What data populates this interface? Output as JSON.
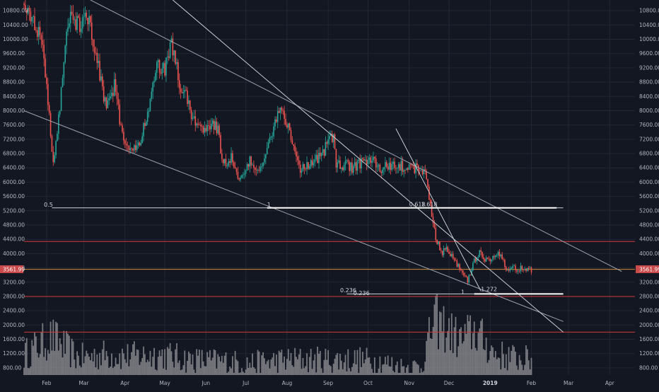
{
  "chart_data": {
    "type": "candlestick",
    "instrument_timeframe": "1D",
    "ylim": [
      600,
      11100
    ],
    "y_ticks": [
      800,
      1200,
      1600,
      2000,
      2400,
      2800,
      3200,
      3600,
      4000,
      4400,
      4800,
      5200,
      5600,
      6000,
      6400,
      6800,
      7200,
      7600,
      8000,
      8400,
      8800,
      9200,
      9600,
      10000,
      10400,
      10800
    ],
    "y_tick_labels": [
      "800.00",
      "1200.00",
      "1600.00",
      "2000.00",
      "2400.00",
      "2800.00",
      "3200.00",
      "3600.00",
      "4000.00",
      "4400.00",
      "4800.00",
      "5200.00",
      "5600.00",
      "6000.00",
      "6400.00",
      "6800.00",
      "7200.00",
      "7600.00",
      "8000.00",
      "8400.00",
      "8800.00",
      "9200.00",
      "9600.00",
      "10000.00",
      "10400.00",
      "10800.00"
    ],
    "x_range": [
      "2018-01-15",
      "2019-04-20"
    ],
    "months": [
      {
        "date": "2018-02-01",
        "label": "Feb",
        "bold": false
      },
      {
        "date": "2018-03-01",
        "label": "Mar",
        "bold": false
      },
      {
        "date": "2018-04-01",
        "label": "Apr",
        "bold": false
      },
      {
        "date": "2018-05-01",
        "label": "May",
        "bold": false
      },
      {
        "date": "2018-06-01",
        "label": "Jun",
        "bold": false
      },
      {
        "date": "2018-07-01",
        "label": "Jul",
        "bold": false
      },
      {
        "date": "2018-08-01",
        "label": "Aug",
        "bold": false
      },
      {
        "date": "2018-09-01",
        "label": "Sep",
        "bold": false
      },
      {
        "date": "2018-10-01",
        "label": "Oct",
        "bold": false
      },
      {
        "date": "2018-11-01",
        "label": "Nov",
        "bold": false
      },
      {
        "date": "2018-12-01",
        "label": "Dec",
        "bold": false
      },
      {
        "date": "2019-01-01",
        "label": "2019",
        "bold": true
      },
      {
        "date": "2019-02-01",
        "label": "Feb",
        "bold": false
      },
      {
        "date": "2019-03-01",
        "label": "Mar",
        "bold": false
      },
      {
        "date": "2019-04-01",
        "label": "Apr",
        "bold": false
      }
    ],
    "price_path": [
      [
        "2018-01-15",
        11000
      ],
      [
        "2018-01-22",
        10500
      ],
      [
        "2018-01-29",
        9800
      ],
      [
        "2018-02-02",
        8200
      ],
      [
        "2018-02-06",
        6600
      ],
      [
        "2018-02-10",
        7800
      ],
      [
        "2018-02-15",
        9800
      ],
      [
        "2018-02-20",
        10700
      ],
      [
        "2018-02-26",
        10300
      ],
      [
        "2018-03-02",
        10900
      ],
      [
        "2018-03-07",
        10100
      ],
      [
        "2018-03-12",
        9200
      ],
      [
        "2018-03-18",
        8000
      ],
      [
        "2018-03-24",
        8700
      ],
      [
        "2018-03-30",
        7300
      ],
      [
        "2018-04-06",
        6800
      ],
      [
        "2018-04-12",
        7000
      ],
      [
        "2018-04-18",
        8000
      ],
      [
        "2018-04-24",
        9200
      ],
      [
        "2018-05-01",
        9200
      ],
      [
        "2018-05-06",
        9900
      ],
      [
        "2018-05-12",
        8800
      ],
      [
        "2018-05-18",
        8300
      ],
      [
        "2018-05-24",
        7600
      ],
      [
        "2018-05-30",
        7500
      ],
      [
        "2018-06-05",
        7700
      ],
      [
        "2018-06-10",
        7400
      ],
      [
        "2018-06-14",
        6500
      ],
      [
        "2018-06-20",
        6700
      ],
      [
        "2018-06-24",
        6200
      ],
      [
        "2018-06-29",
        6100
      ],
      [
        "2018-07-04",
        6600
      ],
      [
        "2018-07-10",
        6300
      ],
      [
        "2018-07-16",
        6800
      ],
      [
        "2018-07-22",
        7500
      ],
      [
        "2018-07-27",
        8200
      ],
      [
        "2018-08-01",
        7600
      ],
      [
        "2018-08-07",
        6900
      ],
      [
        "2018-08-11",
        6300
      ],
      [
        "2018-08-15",
        6400
      ],
      [
        "2018-08-20",
        6500
      ],
      [
        "2018-08-26",
        6700
      ],
      [
        "2018-09-01",
        7100
      ],
      [
        "2018-09-05",
        7300
      ],
      [
        "2018-09-07",
        6500
      ],
      [
        "2018-09-13",
        6500
      ],
      [
        "2018-09-20",
        6400
      ],
      [
        "2018-09-27",
        6600
      ],
      [
        "2018-10-05",
        6600
      ],
      [
        "2018-10-11",
        6300
      ],
      [
        "2018-10-16",
        6500
      ],
      [
        "2018-10-25",
        6450
      ],
      [
        "2018-11-03",
        6400
      ],
      [
        "2018-11-08",
        6400
      ],
      [
        "2018-11-13",
        6250
      ],
      [
        "2018-11-16",
        5600
      ],
      [
        "2018-11-20",
        4600
      ],
      [
        "2018-11-25",
        4000
      ],
      [
        "2018-11-29",
        4200
      ],
      [
        "2018-12-04",
        3900
      ],
      [
        "2018-12-10",
        3500
      ],
      [
        "2018-12-15",
        3250
      ],
      [
        "2018-12-20",
        3800
      ],
      [
        "2018-12-24",
        4000
      ],
      [
        "2018-12-28",
        3850
      ],
      [
        "2019-01-03",
        3850
      ],
      [
        "2019-01-09",
        4000
      ],
      [
        "2019-01-12",
        3600
      ],
      [
        "2019-01-18",
        3600
      ],
      [
        "2019-01-24",
        3580
      ],
      [
        "2019-01-28",
        3500
      ],
      [
        "2019-02-01",
        3560
      ]
    ],
    "volume_scale": [
      600,
      2800
    ],
    "volume_profile": [
      [
        "2018-01-15",
        1200
      ],
      [
        "2018-02-05",
        1700
      ],
      [
        "2018-02-25",
        1100
      ],
      [
        "2018-03-15",
        1200
      ],
      [
        "2018-04-05",
        1150
      ],
      [
        "2018-04-28",
        1200
      ],
      [
        "2018-05-20",
        1050
      ],
      [
        "2018-06-15",
        1000
      ],
      [
        "2018-07-05",
        950
      ],
      [
        "2018-08-01",
        1050
      ],
      [
        "2018-08-20",
        1050
      ],
      [
        "2018-09-10",
        1050
      ],
      [
        "2018-09-25",
        1050
      ],
      [
        "2018-10-10",
        1000
      ],
      [
        "2018-10-25",
        850
      ],
      [
        "2018-11-10",
        850
      ],
      [
        "2018-11-20",
        2200
      ],
      [
        "2018-11-30",
        1900
      ],
      [
        "2018-12-10",
        1600
      ],
      [
        "2018-12-20",
        1900
      ],
      [
        "2019-01-05",
        1200
      ],
      [
        "2019-01-20",
        1100
      ],
      [
        "2019-02-01",
        1050
      ]
    ],
    "current_price": 3561.99,
    "current_price_label": "3561.99",
    "horizontal_levels": [
      {
        "price": 4340,
        "color": "#d03a3a"
      },
      {
        "price": 3560,
        "color": "#d08a3a"
      },
      {
        "price": 2800,
        "color": "#d03a3a"
      },
      {
        "price": 1800,
        "color": "#d03a3a"
      }
    ],
    "trend_lines": [
      {
        "from": [
          "2018-03-06",
          11100
        ],
        "to": [
          "2019-04-10",
          3500
        ],
        "color": "#9aa0ae"
      },
      {
        "from": [
          "2018-01-15",
          8000
        ],
        "to": [
          "2019-02-25",
          2100
        ],
        "color": "#9aa0ae"
      },
      {
        "from": [
          "2018-05-07",
          11100
        ],
        "to": [
          "2019-02-25",
          1800
        ],
        "color": "#c8ccd4"
      },
      {
        "from": [
          "2018-10-22",
          7500
        ],
        "to": [
          "2018-12-25",
          2950
        ],
        "color": "#c8ccd4"
      }
    ],
    "fib_extension_1": {
      "base_line": {
        "from": [
          "2018-02-05",
          5280
        ],
        "to": [
          "2019-02-25",
          5280
        ]
      },
      "bold_line": {
        "from": [
          "2018-07-17",
          5280
        ],
        "to": [
          "2019-02-20",
          5280
        ]
      },
      "labels": [
        {
          "text": "0.5",
          "date": "2018-01-30",
          "price": 5280
        },
        {
          "text": "1",
          "date": "2018-07-17",
          "price": 5280
        },
        {
          "text": "0.618",
          "date": "2018-11-01",
          "price": 5290
        },
        {
          "text": "1.618",
          "date": "2018-11-10",
          "price": 5290
        }
      ]
    },
    "fib_extension_2": {
      "base_line": {
        "from": [
          "2018-09-15",
          2870
        ],
        "to": [
          "2019-02-25",
          2870
        ]
      },
      "bold_line": {
        "from": [
          "2018-12-20",
          2870
        ],
        "to": [
          "2019-02-25",
          2870
        ]
      },
      "labels": [
        {
          "text": "0.236",
          "date": "2018-09-10",
          "price": 2880
        },
        {
          "text": "0.236",
          "date": "2018-09-20",
          "price": 2800
        },
        {
          "text": "1",
          "date": "2018-12-10",
          "price": 2830
        },
        {
          "text": "1.272",
          "date": "2018-12-25",
          "price": 2910
        }
      ]
    },
    "colors": {
      "background": "#131722",
      "grid": "#232734",
      "up": "#26a69a",
      "down": "#ef5350",
      "volume": "#9a9a9e",
      "price_tag": "#c94a4a"
    }
  }
}
